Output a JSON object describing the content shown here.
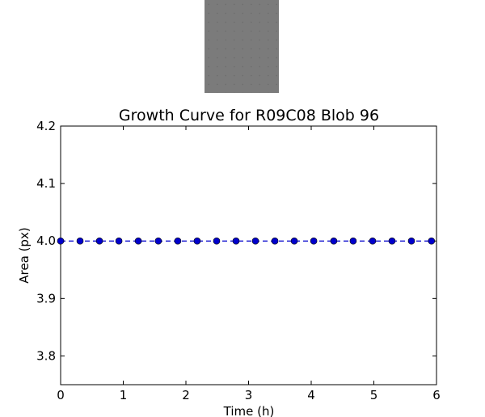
{
  "thumbnail": {
    "fill_color": "#7b7b7b",
    "dot_color": "#6e6e6e"
  },
  "chart_data": {
    "type": "line",
    "title": "Growth Curve for R09C08 Blob 96",
    "xlabel": "Time (h)",
    "ylabel": "Area (px)",
    "xlim": [
      0,
      6
    ],
    "ylim": [
      3.75,
      4.2
    ],
    "xticks": [
      "0",
      "1",
      "2",
      "3",
      "4",
      "5",
      "6"
    ],
    "yticks": [
      "3.8",
      "3.9",
      "4.0",
      "4.1",
      "4.2"
    ],
    "grid": false,
    "series": [
      {
        "color": "#0000cc",
        "line_style": "dashed",
        "marker": "circle",
        "x": [
          0,
          0.31,
          0.62,
          0.93,
          1.24,
          1.56,
          1.87,
          2.18,
          2.49,
          2.8,
          3.11,
          3.42,
          3.73,
          4.04,
          4.36,
          4.67,
          4.98,
          5.29,
          5.6,
          5.92
        ],
        "y": [
          4.0,
          4.0,
          4.0,
          4.0,
          4.0,
          4.0,
          4.0,
          4.0,
          4.0,
          4.0,
          4.0,
          4.0,
          4.0,
          4.0,
          4.0,
          4.0,
          4.0,
          4.0,
          4.0,
          4.0
        ]
      }
    ]
  }
}
